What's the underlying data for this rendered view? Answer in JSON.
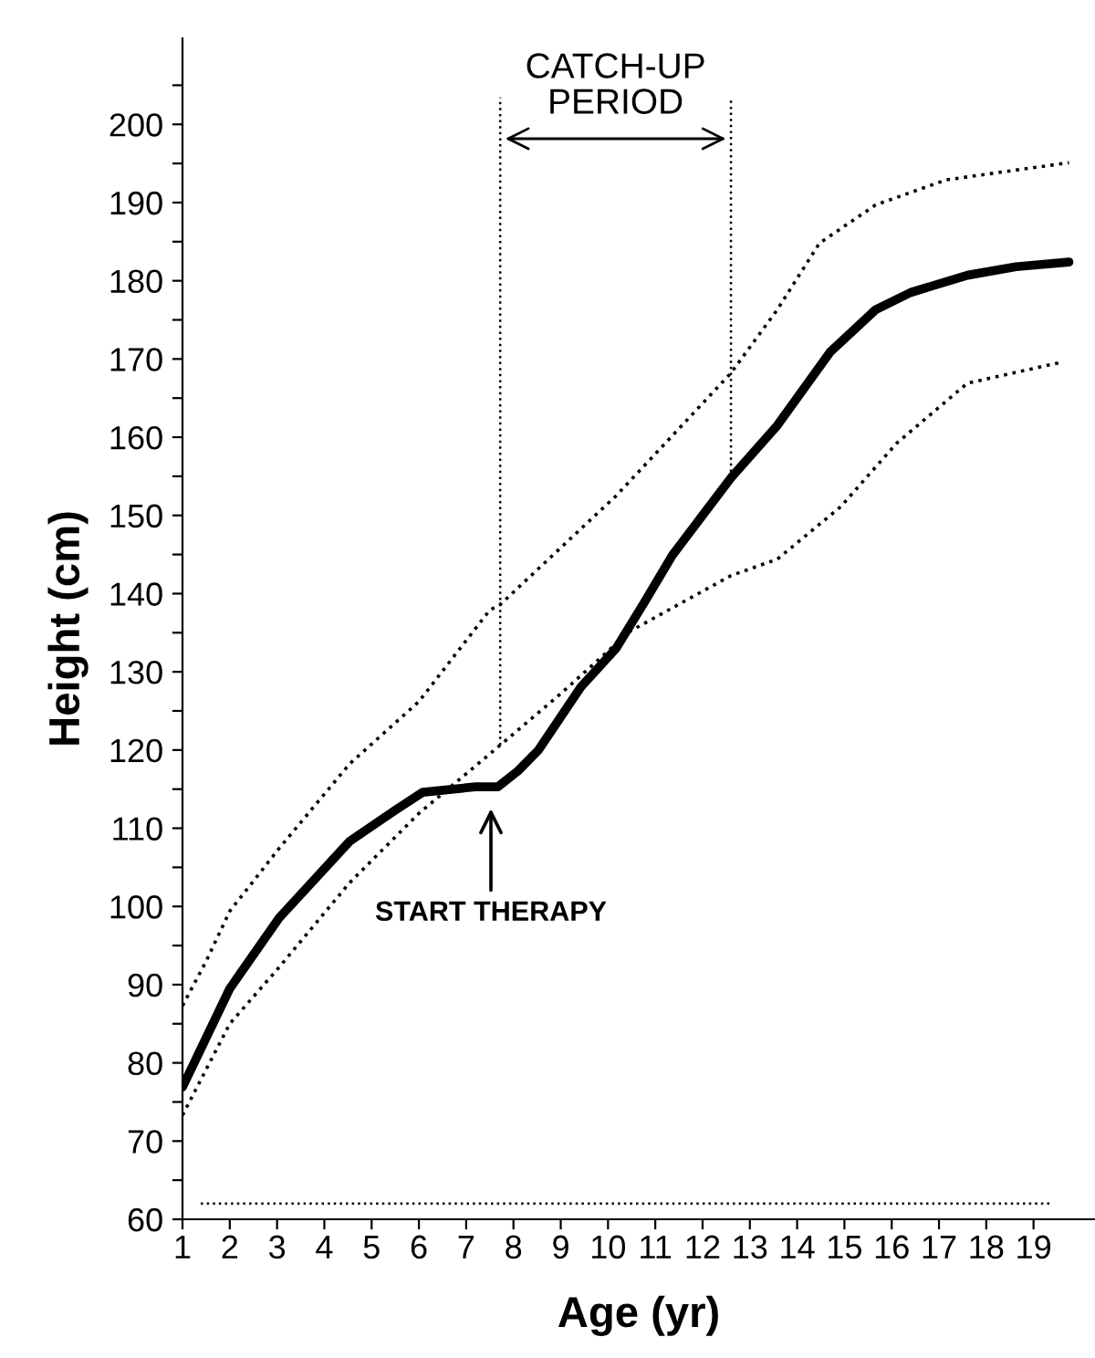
{
  "chart_data": {
    "type": "line",
    "xlabel": "Age (yr)",
    "ylabel": "Height (cm)",
    "xlim": [
      1,
      20.3
    ],
    "ylim": [
      60,
      211
    ],
    "xticks": [
      1,
      2,
      3,
      4,
      5,
      6,
      7,
      8,
      9,
      10,
      11,
      12,
      13,
      14,
      15,
      16,
      17,
      18,
      19
    ],
    "yticks": [
      60,
      {
        "value": 65,
        "label": null
      },
      70,
      {
        "value": 75,
        "label": null
      },
      80,
      {
        "value": 85,
        "label": null
      },
      90,
      {
        "value": 95,
        "label": null
      },
      100,
      {
        "value": 105,
        "label": null
      },
      110,
      {
        "value": 115,
        "label": null
      },
      120,
      {
        "value": 125,
        "label": null
      },
      130,
      {
        "value": 135,
        "label": null
      },
      140,
      {
        "value": 145,
        "label": null
      },
      150,
      {
        "value": 155,
        "label": null
      },
      160,
      {
        "value": 165,
        "label": null
      },
      170,
      {
        "value": 175,
        "label": null
      },
      180,
      {
        "value": 185,
        "label": null
      },
      190,
      {
        "value": 195,
        "label": null
      },
      200,
      {
        "value": 205,
        "label": null
      }
    ],
    "grid": false,
    "series": [
      {
        "color": "#000000",
        "line_style": "dotted",
        "x": [
          1,
          1.5,
          2,
          3.04,
          4.53,
          6.0,
          7.5,
          7.72,
          10.17,
          12.6,
          13.58,
          14.47,
          15.66,
          17.15,
          19.75
        ],
        "values": [
          87.3,
          93,
          99.4,
          107.4,
          118.2,
          126.2,
          137.9,
          138.6,
          152.5,
          168.2,
          176.3,
          184.8,
          189.7,
          192.9,
          195.1
        ]
      },
      {
        "color": "#000000",
        "line_style": "solid",
        "x": [
          1,
          2,
          3.04,
          4.53,
          5.5,
          6.08,
          7.2,
          7.67,
          8.09,
          8.53,
          9.43,
          10.17,
          10.76,
          11.36,
          12.6,
          13.58,
          14.7,
          15.66,
          16.4,
          17.6,
          18.63,
          19.75
        ],
        "values": [
          76.9,
          89.5,
          98.5,
          108.3,
          112.3,
          114.6,
          115.3,
          115.3,
          117.3,
          120.0,
          128.1,
          133.0,
          138.8,
          144.9,
          154.8,
          161.5,
          170.9,
          176.3,
          178.5,
          180.7,
          181.8,
          182.4
        ]
      },
      {
        "color": "#000000",
        "line_style": "dotted",
        "x": [
          1,
          2,
          3.04,
          4.53,
          6.0,
          7.5,
          8.98,
          10.47,
          12.6,
          13.58,
          14.92,
          16.1,
          17.6,
          19.6
        ],
        "values": [
          73.3,
          85,
          92.2,
          103,
          111.9,
          119.5,
          127.1,
          135.2,
          142.3,
          144.4,
          151.1,
          159.2,
          166.9,
          169.6
        ]
      }
    ],
    "ref_lines": [
      {
        "axis": "x",
        "value": 7.72,
        "color": "#000000",
        "line_style": "dotted"
      },
      {
        "axis": "x",
        "value": 12.6,
        "color": "#000000",
        "line_style": "dotted"
      },
      {
        "axis": "y",
        "value": 62,
        "color": "#000000",
        "line_style": "dotted"
      }
    ],
    "annotations": [
      "START THERAPY",
      "CATCH-UP\nPERIOD"
    ]
  }
}
